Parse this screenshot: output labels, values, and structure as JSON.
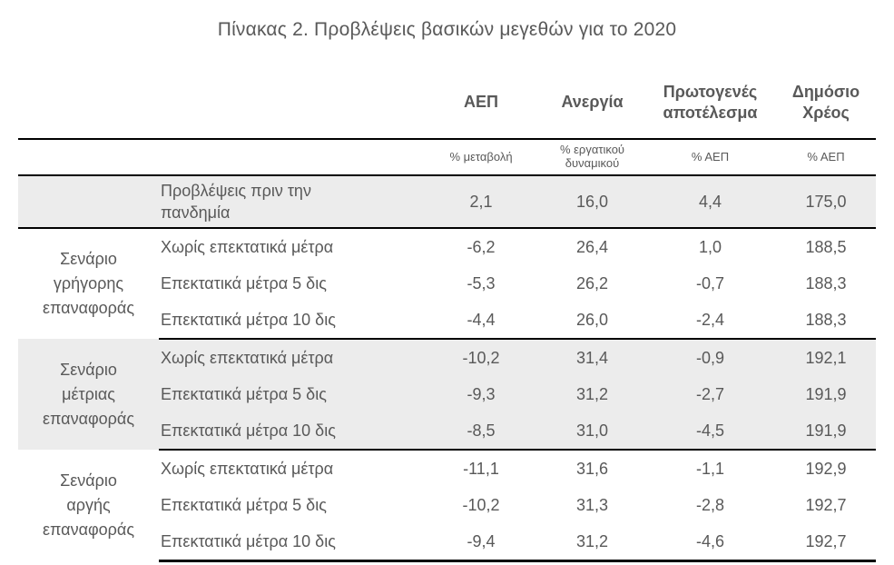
{
  "title": "Πίνακας 2. Προβλέψεις βασικών μεγεθών για το 2020",
  "colors": {
    "text_gray": "#595959",
    "band_gray": "#ececec",
    "rule_black": "#000000",
    "background": "#ffffff"
  },
  "table": {
    "columns": [
      "ΑΕΠ",
      "Ανεργία",
      "Πρωτογενές αποτέλεσμα",
      "Δημόσιο Χρέος"
    ],
    "units": [
      "% μεταβολή",
      "% εργατικού δυναμικού",
      "% ΑΕΠ",
      "% ΑΕΠ"
    ],
    "baseline": {
      "label": "Προβλέψεις πριν την πανδημία",
      "values": [
        "2,1",
        "16,0",
        "4,4",
        "175,0"
      ]
    },
    "scenarios": [
      {
        "name": "Σενάριο γρήγορης επαναφοράς",
        "rows": [
          {
            "label": "Χωρίς επεκτατικά μέτρα",
            "values": [
              "-6,2",
              "26,4",
              "1,0",
              "188,5"
            ]
          },
          {
            "label": "Επεκτατικά μέτρα 5 δις",
            "values": [
              "-5,3",
              "26,2",
              "-0,7",
              "188,3"
            ]
          },
          {
            "label": "Επεκτατικά μέτρα 10 δις",
            "values": [
              "-4,4",
              "26,0",
              "-2,4",
              "188,3"
            ]
          }
        ]
      },
      {
        "name": "Σενάριο μέτριας επαναφοράς",
        "rows": [
          {
            "label": "Χωρίς επεκτατικά μέτρα",
            "values": [
              "-10,2",
              "31,4",
              "-0,9",
              "192,1"
            ]
          },
          {
            "label": "Επεκτατικά μέτρα 5 δις",
            "values": [
              "-9,3",
              "31,2",
              "-2,7",
              "191,9"
            ]
          },
          {
            "label": "Επεκτατικά μέτρα 10 δις",
            "values": [
              "-8,5",
              "31,0",
              "-4,5",
              "191,9"
            ]
          }
        ]
      },
      {
        "name": "Σενάριο αργής επαναφοράς",
        "rows": [
          {
            "label": "Χωρίς επεκτατικά μέτρα",
            "values": [
              "-11,1",
              "31,6",
              "-1,1",
              "192,9"
            ]
          },
          {
            "label": "Επεκτατικά μέτρα 5 δις",
            "values": [
              "-10,2",
              "31,3",
              "-2,8",
              "192,7"
            ]
          },
          {
            "label": "Επεκτατικά μέτρα 10 δις",
            "values": [
              "-9,4",
              "31,2",
              "-4,6",
              "192,7"
            ]
          }
        ]
      }
    ]
  }
}
